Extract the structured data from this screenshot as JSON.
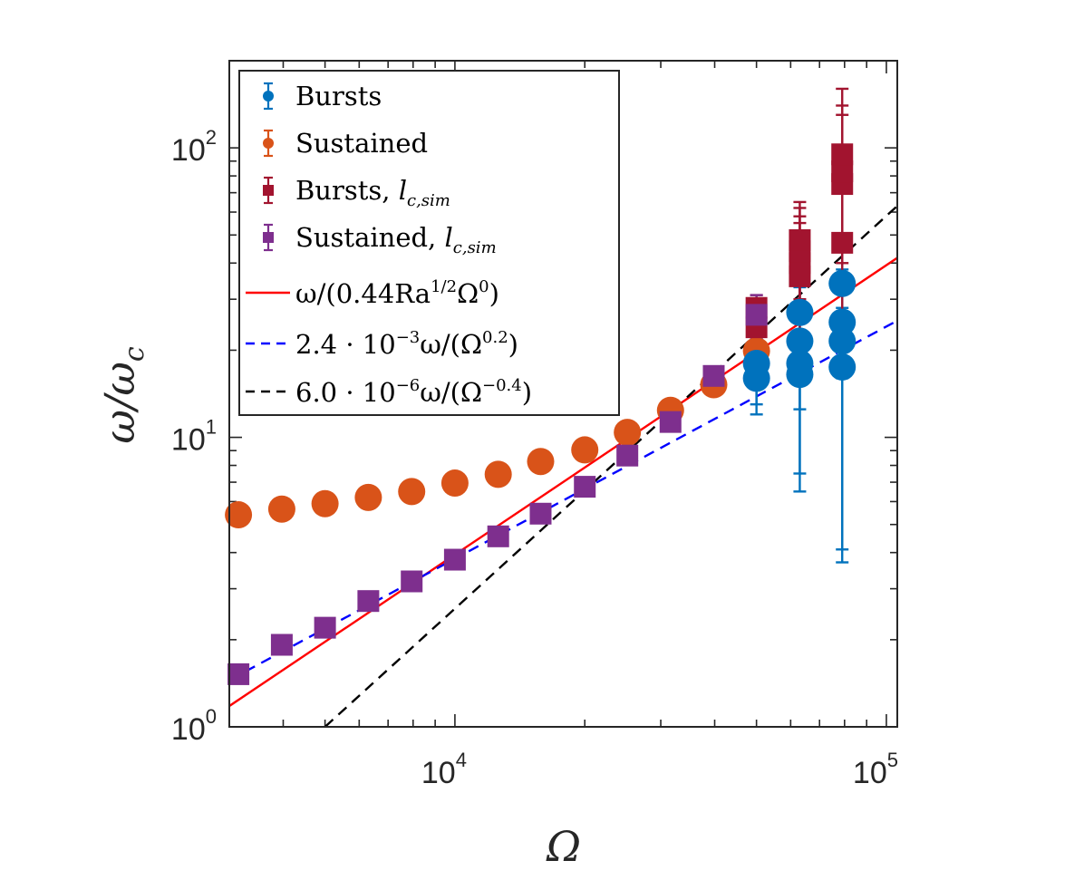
{
  "chart_data": {
    "type": "scatter",
    "xscale": "log",
    "yscale": "log",
    "xlim": [
      3000,
      106000
    ],
    "ylim": [
      1,
      200
    ],
    "xlabel": "Ω",
    "ylabel": "ω/ωc",
    "ylabel_main": "ω/ω",
    "ylabel_sub": "c",
    "xticks": [
      {
        "value": 10000,
        "base": "10",
        "exp": "4"
      },
      {
        "value": 100000,
        "base": "10",
        "exp": "5"
      }
    ],
    "yticks": [
      {
        "value": 1,
        "base": "10",
        "exp": "0"
      },
      {
        "value": 10,
        "base": "10",
        "exp": "1"
      },
      {
        "value": 100,
        "base": "10",
        "exp": "2"
      }
    ],
    "legend_position": "top-left",
    "series": [
      {
        "name": "Bursts",
        "label": "Bursts",
        "color": "#0072BD",
        "marker": "circle",
        "points": [
          {
            "x": 50000,
            "y": 16,
            "lo": 12,
            "hi": 20
          },
          {
            "x": 50000,
            "y": 18,
            "lo": 13,
            "hi": 22
          },
          {
            "x": 63000,
            "y": 16.5,
            "lo": 6.5,
            "hi": 23
          },
          {
            "x": 63000,
            "y": 18,
            "lo": 7.5,
            "hi": 25
          },
          {
            "x": 63000,
            "y": 21.5,
            "lo": 12.5,
            "hi": 29
          },
          {
            "x": 63000,
            "y": 27,
            "lo": 16,
            "hi": 33
          },
          {
            "x": 79000,
            "y": 17.5,
            "lo": 3.7,
            "hi": 28
          },
          {
            "x": 79000,
            "y": 21.5,
            "lo": 4.1,
            "hi": 32
          },
          {
            "x": 79000,
            "y": 25,
            "lo": 16,
            "hi": 38
          },
          {
            "x": 79000,
            "y": 34,
            "lo": 22,
            "hi": 48
          }
        ]
      },
      {
        "name": "Sustained",
        "label": "Sustained",
        "color": "#D95319",
        "marker": "circle",
        "points": [
          {
            "x": 3150,
            "y": 5.4
          },
          {
            "x": 3970,
            "y": 5.65
          },
          {
            "x": 5000,
            "y": 5.9
          },
          {
            "x": 6300,
            "y": 6.2
          },
          {
            "x": 7940,
            "y": 6.5
          },
          {
            "x": 10000,
            "y": 6.95
          },
          {
            "x": 12600,
            "y": 7.45
          },
          {
            "x": 15800,
            "y": 8.25
          },
          {
            "x": 20000,
            "y": 9.05
          },
          {
            "x": 25100,
            "y": 10.4
          },
          {
            "x": 31600,
            "y": 12.4
          },
          {
            "x": 39800,
            "y": 15.2
          },
          {
            "x": 50000,
            "y": 19.9,
            "lo": 15,
            "hi": 27
          }
        ]
      },
      {
        "name": "Bursts, l_c,sim",
        "label_main": "Bursts, ",
        "label_var": "l",
        "label_sub": "c,sim",
        "color": "#A2142F",
        "marker": "square",
        "points": [
          {
            "x": 50000,
            "y": 24,
            "lo": 18,
            "hi": 30
          },
          {
            "x": 50000,
            "y": 28,
            "lo": 20,
            "hi": 31
          },
          {
            "x": 63000,
            "y": 36,
            "lo": 20,
            "hi": 55
          },
          {
            "x": 63000,
            "y": 40,
            "lo": 25,
            "hi": 58
          },
          {
            "x": 63000,
            "y": 44,
            "lo": 28,
            "hi": 62
          },
          {
            "x": 63000,
            "y": 48,
            "lo": 30,
            "hi": 65
          },
          {
            "x": 79000,
            "y": 47,
            "lo": 25,
            "hi": 90
          },
          {
            "x": 79000,
            "y": 75,
            "lo": 40,
            "hi": 130
          },
          {
            "x": 79000,
            "y": 83,
            "lo": 45,
            "hi": 140
          },
          {
            "x": 79000,
            "y": 95,
            "lo": 50,
            "hi": 160
          }
        ]
      },
      {
        "name": "Sustained, l_c,sim",
        "label_main": "Sustained, ",
        "label_var": "l",
        "label_sub": "c,sim",
        "color": "#7E2F8E",
        "marker": "square",
        "points": [
          {
            "x": 3150,
            "y": 1.52
          },
          {
            "x": 3970,
            "y": 1.92
          },
          {
            "x": 5000,
            "y": 2.2
          },
          {
            "x": 6300,
            "y": 2.72
          },
          {
            "x": 7940,
            "y": 3.18
          },
          {
            "x": 10000,
            "y": 3.78
          },
          {
            "x": 12600,
            "y": 4.55
          },
          {
            "x": 15800,
            "y": 5.45
          },
          {
            "x": 20000,
            "y": 6.75
          },
          {
            "x": 25100,
            "y": 8.65
          },
          {
            "x": 31600,
            "y": 11.3
          },
          {
            "x": 39800,
            "y": 16.3
          },
          {
            "x": 50000,
            "y": 26.5,
            "lo": 22,
            "hi": 31
          }
        ]
      }
    ],
    "fit_lines": [
      {
        "name": "red fit",
        "label_pre": "ω/(0.44Ra",
        "label_sup1": "1/2",
        "label_mid": "Ω",
        "label_sup2": "0",
        "label_post": ")",
        "color": "#FF0000",
        "dash": "solid",
        "x": [
          3000,
          106000
        ],
        "y": [
          1.18,
          41.7
        ]
      },
      {
        "name": "blue fit",
        "label_pre": "2.4 · 10",
        "label_sup1": "−3",
        "label_mid": "ω/(Ω",
        "label_sup2": "0.2",
        "label_post": ")",
        "color": "#0000FF",
        "dash": "dashed",
        "x": [
          3000,
          106000
        ],
        "y": [
          1.45,
          25.3
        ]
      },
      {
        "name": "black fit",
        "label_pre": "6.0 · 10",
        "label_sup1": "−6",
        "label_mid": "ω/(Ω",
        "label_sup2": "−0.4",
        "label_post": ")",
        "color": "#000000",
        "dash": "dashed",
        "x": [
          5000,
          106000
        ],
        "y": [
          1.0,
          63.0
        ]
      }
    ]
  }
}
